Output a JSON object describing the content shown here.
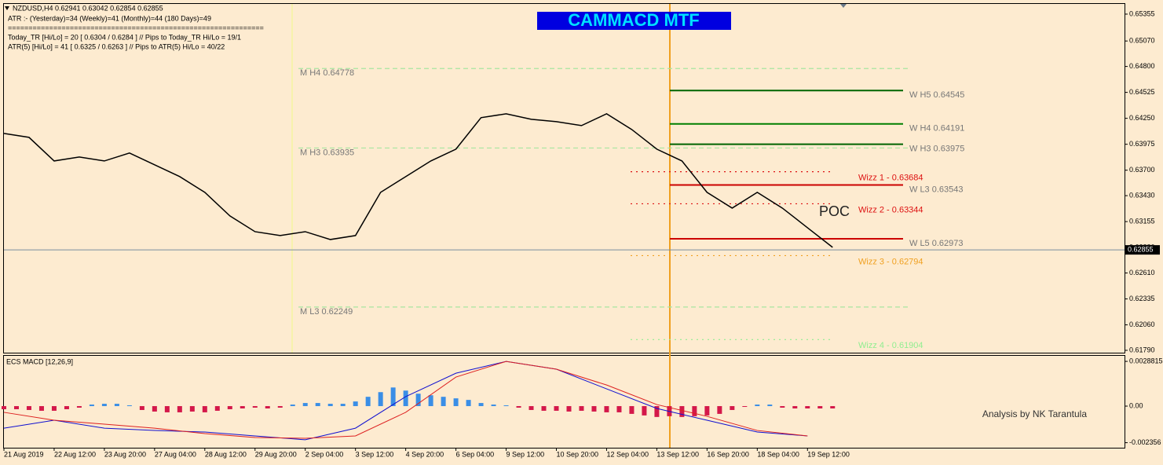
{
  "chart_data": [
    {
      "type": "line",
      "title": "CAMMACD MTF",
      "info_lines": [
        "NZDUSD,H4  0.62941 0.63042 0.62854 0.62855",
        "ATR :- (Yesterday)=34      (Weekly)=41      (Monthly)=44      (180 Days)=49",
        "==============================================================",
        "Today_TR [Hi/Lo] = 20 [ 0.6304 / 0.6284 ]  // Pips to Today_TR Hi/Lo  = 19/1",
        "ATR(5)      [Hi/Lo] = 41 [ 0.6325 / 0.6263 ]  //  Pips to ATR(5) Hi/Lo   = 40/22"
      ],
      "annotations": [
        "POC"
      ],
      "series": [
        {
          "color": "#000000",
          "x": [
            0,
            4,
            8,
            12,
            16,
            20,
            24,
            28,
            32,
            36,
            40,
            44,
            48,
            52,
            56,
            60,
            64,
            68,
            72,
            76,
            80,
            84,
            88,
            92,
            96,
            100,
            104,
            108,
            112,
            116,
            120,
            124,
            128,
            132
          ],
          "values": [
            0.6409,
            0.64048,
            0.63798,
            0.6384,
            0.63798,
            0.63882,
            0.63757,
            0.63632,
            0.63465,
            0.63215,
            0.63048,
            0.63007,
            0.63048,
            0.62965,
            0.63007,
            0.63465,
            0.63632,
            0.63798,
            0.63923,
            0.64257,
            0.64298,
            0.6424,
            0.64215,
            0.64173,
            0.64298,
            0.64132,
            0.63923,
            0.63798,
            0.63465,
            0.63298,
            0.63465,
            0.63298,
            0.6309,
            0.62882
          ]
        }
      ],
      "levels": [
        {
          "label": "M  H4 0.64778",
          "value": 0.64778,
          "color": "#a8e6a0",
          "style": "dashed"
        },
        {
          "label": "M  H3 0.63935",
          "value": 0.63935,
          "color": "#a8e6a0",
          "style": "dashed"
        },
        {
          "label": "M  L3 0.62249",
          "value": 0.62249,
          "color": "#a8e6a0",
          "style": "dashed"
        },
        {
          "label": "W  H5 0.64545",
          "value": 0.64545,
          "color": "#006400",
          "style": "solid"
        },
        {
          "label": "W  H4 0.64191",
          "value": 0.64191,
          "color": "#008000",
          "style": "solid"
        },
        {
          "label": "W  H3 0.63975",
          "value": 0.63975,
          "color": "#006400",
          "style": "solid"
        },
        {
          "label": "W  L3 0.63543",
          "value": 0.63543,
          "color": "#cc0000",
          "style": "solid"
        },
        {
          "label": "W  L5 0.62973",
          "value": 0.62973,
          "color": "#cc0000",
          "style": "solid"
        },
        {
          "label": "Wizz 1 - 0.63684",
          "value": 0.63684,
          "color": "#dd1111",
          "style": "dotted"
        },
        {
          "label": "Wizz 2 - 0.63344",
          "value": 0.63344,
          "color": "#dd1111",
          "style": "dotted"
        },
        {
          "label": "Wizz 3 - 0.62794",
          "value": 0.62794,
          "color": "#f0a020",
          "style": "dotted"
        },
        {
          "label": "Wizz 4 - 0.61904",
          "value": 0.61904,
          "color": "#90ee90",
          "style": "dotted"
        }
      ],
      "last_price": 0.62855,
      "xlim": [
        0,
        178.5
      ],
      "ylim": [
        0.61765,
        0.65463
      ],
      "yticks": [
        0.65355,
        {
          "value": 0.6507,
          "label": "0.65070"
        },
        {
          "value": 0.648,
          "label": "0.64800"
        },
        0.64525,
        {
          "value": 0.6425,
          "label": "0.64250"
        },
        0.63975,
        {
          "value": 0.637,
          "label": "0.63700"
        },
        {
          "value": 0.6343,
          "label": "0.63430"
        },
        0.63155,
        {
          "value": 0.6288,
          "label": "0.62880"
        },
        {
          "value": 0.6261,
          "label": "0.62610"
        },
        0.62335,
        {
          "value": 0.6206,
          "label": "0.62060"
        },
        {
          "value": 0.6179,
          "label": "0.61790"
        }
      ]
    },
    {
      "type": "bar",
      "title": "ECS MACD [12,26,9]",
      "annotations": [
        "Analysis by NK Tarantula"
      ],
      "x": [
        0,
        2,
        4,
        6,
        8,
        10,
        12,
        14,
        16,
        18,
        20,
        22,
        24,
        26,
        28,
        30,
        32,
        34,
        36,
        38,
        40,
        42,
        44,
        46,
        48,
        50,
        52,
        54,
        56,
        58,
        60,
        62,
        64,
        66,
        68,
        70,
        72,
        74,
        76,
        78,
        80,
        82,
        84,
        86,
        88,
        90,
        92,
        94,
        96,
        98,
        100,
        102,
        104,
        106,
        108,
        110,
        112,
        114,
        116,
        118,
        120,
        122,
        124,
        126,
        128,
        130,
        132
      ],
      "values": [
        -0.0002,
        -0.0002,
        -0.00025,
        -0.0003,
        -0.0003,
        -0.0002,
        -0.0001,
        0.0001,
        0.00015,
        0.00015,
        5e-05,
        -0.00025,
        -0.00035,
        -0.0004,
        -0.0004,
        -0.00035,
        -0.0004,
        -0.0003,
        -0.0002,
        -0.00015,
        -0.0001,
        -0.00015,
        -0.0001,
        0.0001,
        0.0002,
        0.0002,
        0.00015,
        0.00015,
        0.0003,
        0.0006,
        0.0009,
        0.0012,
        0.001,
        0.0008,
        0.0007,
        0.0006,
        0.0005,
        0.0004,
        0.0002,
        0.0001,
        5e-05,
        -0.0001,
        -0.00025,
        -0.0003,
        -0.0003,
        -0.00035,
        -0.0003,
        -0.00035,
        -0.0004,
        -0.0004,
        -0.0005,
        -0.0006,
        -0.0007,
        -0.00065,
        -0.0007,
        -0.00065,
        -0.0006,
        -0.0005,
        -0.00025,
        -5e-05,
        0.0001,
        0.0001,
        -0.0001,
        -0.00015,
        -0.00015,
        -0.00015,
        -0.00015
      ],
      "color": "#3a8ee6",
      "negative_color": "#d4184a",
      "series": [
        {
          "color": "#1010d0",
          "x": [
            0,
            8,
            16,
            24,
            32,
            40,
            48,
            56,
            64,
            72,
            80,
            88,
            96,
            104,
            112,
            120,
            128
          ],
          "values": [
            -0.00142,
            -0.00091,
            -0.00142,
            -0.00157,
            -0.00167,
            -0.00192,
            -0.00217,
            -0.00142,
            0.00061,
            0.00212,
            0.00288,
            0.00238,
            0.00111,
            -0.00015,
            -0.00091,
            -0.00167,
            -0.00192
          ]
        },
        {
          "color": "#dd2020",
          "x": [
            0,
            8,
            16,
            24,
            32,
            40,
            48,
            56,
            64,
            72,
            80,
            88,
            96,
            104,
            112,
            120,
            128
          ],
          "values": [
            -0.0004,
            -0.00091,
            -0.00116,
            -0.00142,
            -0.00177,
            -0.00202,
            -0.00207,
            -0.00192,
            -0.0004,
            0.00187,
            0.00288,
            0.00238,
            0.00136,
            0.0001,
            -0.00066,
            -0.00157,
            -0.00192
          ]
        }
      ],
      "xlim": [
        0,
        178.5
      ],
      "ylim": [
        -0.00268,
        0.00329
      ],
      "yticks": [
        0.0028815,
        {
          "value": 0,
          "label": "0.00"
        },
        -0.002356
      ],
      "xticks": [
        {
          "value": 0,
          "label": "21 Aug 2019"
        },
        {
          "value": 8,
          "label": "22 Aug 12:00"
        },
        {
          "value": 16,
          "label": "23 Aug 20:00"
        },
        {
          "value": 24,
          "label": "27 Aug 04:00"
        },
        {
          "value": 32,
          "label": "28 Aug 12:00"
        },
        {
          "value": 40,
          "label": "29 Aug 20:00"
        },
        {
          "value": 48,
          "label": "2 Sep 04:00"
        },
        {
          "value": 56,
          "label": "3 Sep 12:00"
        },
        {
          "value": 64,
          "label": "4 Sep 20:00"
        },
        {
          "value": 72,
          "label": "6 Sep 04:00"
        },
        {
          "value": 80,
          "label": "9 Sep 12:00"
        },
        {
          "value": 88,
          "label": "10 Sep 20:00"
        },
        {
          "value": 96,
          "label": "12 Sep 04:00"
        },
        {
          "value": 104,
          "label": "13 Sep 12:00"
        },
        {
          "value": 112,
          "label": "16 Sep 20:00"
        },
        {
          "value": 120,
          "label": "18 Sep 04:00"
        },
        {
          "value": 128,
          "label": "19 Sep 12:00"
        }
      ]
    }
  ]
}
